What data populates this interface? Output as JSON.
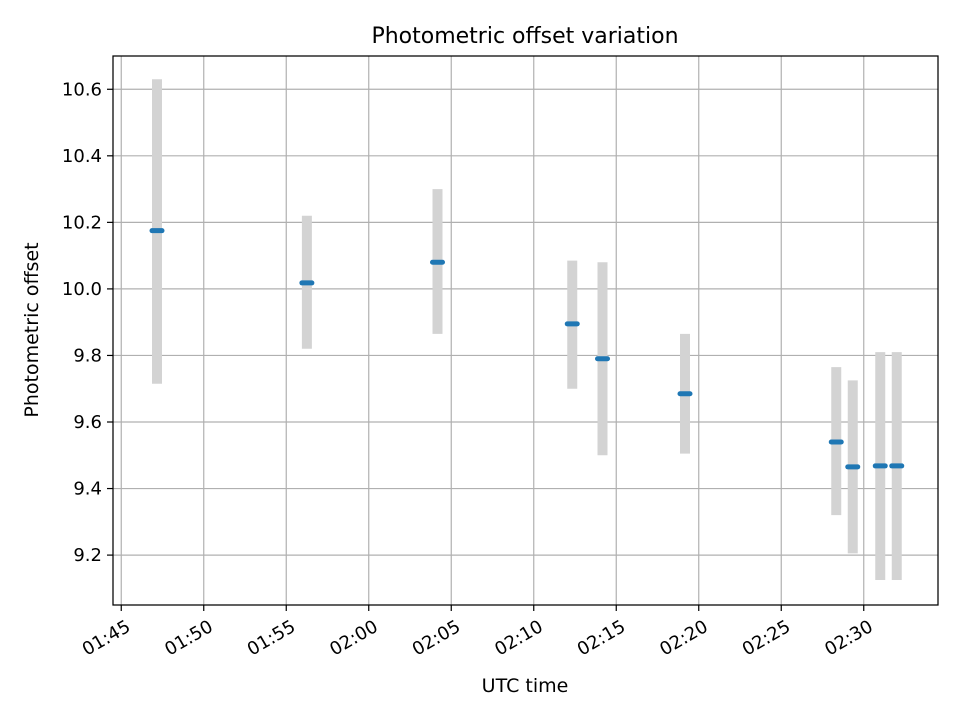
{
  "chart_data": {
    "type": "scatter",
    "title": "Photometric offset variation",
    "xlabel": "UTC time",
    "ylabel": "Photometric offset",
    "xlim": [
      "01:44:30",
      "02:34:30"
    ],
    "ylim": [
      9.05,
      10.7
    ],
    "x_ticks": [
      "01:45",
      "01:50",
      "01:55",
      "02:00",
      "02:05",
      "02:10",
      "02:15",
      "02:20",
      "02:25",
      "02:30"
    ],
    "y_ticks": [
      9.2,
      9.4,
      9.6,
      9.8,
      10.0,
      10.2,
      10.4,
      10.6
    ],
    "grid": true,
    "colors": {
      "marker": "#1f77b4",
      "error_bar": "#d3d3d3",
      "grid": "#b0b0b0"
    },
    "series": [
      {
        "points": [
          {
            "x": "01:47:10",
            "y": 10.175,
            "err_low": 9.715,
            "err_high": 10.63
          },
          {
            "x": "01:56:15",
            "y": 10.018,
            "err_low": 9.82,
            "err_high": 10.22
          },
          {
            "x": "02:04:10",
            "y": 10.08,
            "err_low": 9.865,
            "err_high": 10.3
          },
          {
            "x": "02:12:20",
            "y": 9.895,
            "err_low": 9.7,
            "err_high": 10.085
          },
          {
            "x": "02:14:10",
            "y": 9.79,
            "err_low": 9.5,
            "err_high": 10.08
          },
          {
            "x": "02:19:10",
            "y": 9.685,
            "err_low": 9.505,
            "err_high": 9.865
          },
          {
            "x": "02:28:20",
            "y": 9.54,
            "err_low": 9.32,
            "err_high": 9.765
          },
          {
            "x": "02:29:20",
            "y": 9.465,
            "err_low": 9.205,
            "err_high": 9.725
          },
          {
            "x": "02:31:00",
            "y": 9.468,
            "err_low": 9.125,
            "err_high": 9.81
          },
          {
            "x": "02:32:00",
            "y": 9.468,
            "err_low": 9.125,
            "err_high": 9.81
          }
        ]
      }
    ]
  }
}
